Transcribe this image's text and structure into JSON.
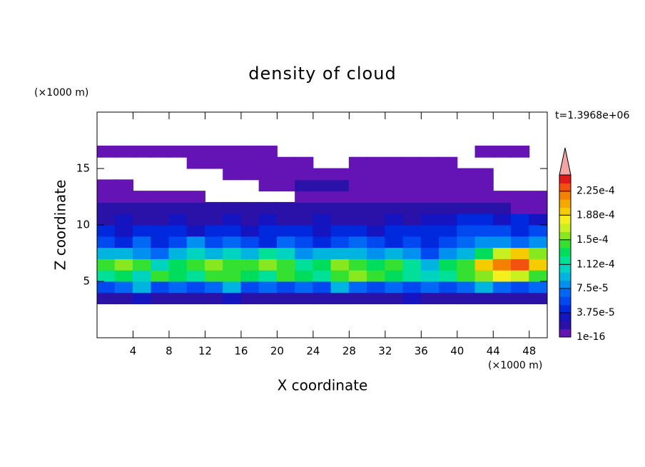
{
  "chart_data": {
    "type": "contour",
    "title": "density of cloud",
    "x_label": "X coordinate",
    "y_label": "Z coordinate",
    "x_unit": "(×1000 m)",
    "y_unit": "(×1000 m)",
    "annotation": "t=1.3968e+06",
    "xlim": [
      0,
      50
    ],
    "ylim": [
      0,
      20
    ],
    "xticks": [
      4,
      8,
      12,
      16,
      20,
      24,
      28,
      32,
      36,
      40,
      44,
      48
    ],
    "yticks": [
      5,
      10,
      15
    ],
    "field": {
      "x": [
        1,
        3,
        5,
        7,
        9,
        11,
        13,
        15,
        17,
        19,
        21,
        23,
        25,
        27,
        29,
        31,
        33,
        35,
        37,
        39,
        41,
        43,
        45,
        47,
        49
      ],
      "z": [
        3.5,
        4.5,
        5.5,
        6.5,
        7.5,
        8.5,
        9.5,
        10.5,
        11.5,
        12.5,
        13.5,
        14.5,
        15.5,
        16.5
      ],
      "values": [
        [
          2e-05,
          2e-05,
          3e-05,
          2e-05,
          2e-05,
          2e-05,
          2e-05,
          3e-05,
          2e-05,
          2e-05,
          2e-05,
          2e-05,
          2e-05,
          2e-05,
          2e-05,
          2e-05,
          2e-05,
          3e-05,
          2e-05,
          2e-05,
          2e-05,
          2e-05,
          2e-05,
          2e-05,
          2e-05
        ],
        [
          6e-05,
          7e-05,
          9e-05,
          6e-05,
          7e-05,
          6e-05,
          7e-05,
          9e-05,
          6e-05,
          7e-05,
          6e-05,
          7e-05,
          6e-05,
          9e-05,
          7e-05,
          6e-05,
          7e-05,
          6e-05,
          7e-05,
          6e-05,
          7e-05,
          9e-05,
          7e-05,
          6e-05,
          7e-05
        ],
        [
          0.00012,
          0.00013,
          0.00011,
          0.00014,
          0.00013,
          0.00012,
          0.00014,
          0.00015,
          0.00013,
          0.00012,
          0.00014,
          0.00013,
          0.00012,
          0.00015,
          0.00016,
          0.00014,
          0.00013,
          0.00012,
          0.00011,
          0.00012,
          0.00014,
          0.00016,
          0.00018,
          0.00017,
          0.00015
        ],
        [
          0.00015,
          0.00016,
          0.00014,
          0.00011,
          0.00013,
          0.00015,
          0.00016,
          0.00015,
          0.00014,
          0.00016,
          0.00015,
          0.00012,
          0.00013,
          0.00016,
          0.00015,
          0.00013,
          0.00014,
          0.00012,
          0.0001,
          0.00013,
          0.00015,
          0.00019,
          0.00022,
          0.00023,
          0.0002
        ],
        [
          9e-05,
          0.0001,
          8e-05,
          7e-05,
          9e-05,
          0.00011,
          0.0001,
          0.00011,
          9e-05,
          0.00012,
          0.00011,
          8e-05,
          9e-05,
          0.0001,
          9e-05,
          8e-05,
          9e-05,
          8e-05,
          6e-05,
          8e-05,
          0.0001,
          0.00013,
          0.00017,
          0.00019,
          0.00016
        ],
        [
          6e-05,
          5e-05,
          7e-05,
          5e-05,
          6e-05,
          8e-05,
          6e-05,
          7e-05,
          6e-05,
          5e-05,
          7e-05,
          6e-05,
          5e-05,
          6e-05,
          7e-05,
          6e-05,
          5e-05,
          6e-05,
          5e-05,
          6e-05,
          7e-05,
          8e-05,
          8e-05,
          7e-05,
          8e-05
        ],
        [
          4e-05,
          3e-05,
          4e-05,
          5e-05,
          4e-05,
          3e-05,
          4e-05,
          4e-05,
          3e-05,
          4e-05,
          5e-05,
          4e-05,
          3e-05,
          4e-05,
          4e-05,
          3e-05,
          4e-05,
          5e-05,
          4e-05,
          5e-05,
          6e-05,
          6e-05,
          6e-05,
          5e-05,
          6e-05
        ],
        [
          2.5e-05,
          3e-05,
          2.5e-05,
          2e-05,
          3e-05,
          2.5e-05,
          2e-05,
          3e-05,
          2.5e-05,
          3e-05,
          2e-05,
          2.5e-05,
          3e-05,
          2.5e-05,
          2e-05,
          2.5e-05,
          3e-05,
          2.5e-05,
          3e-05,
          3.5e-05,
          4e-05,
          4e-05,
          3.5e-05,
          4e-05,
          3.5e-05
        ],
        [
          1.3e-05,
          1.5e-05,
          2e-05,
          1.3e-05,
          1.5e-05,
          1.3e-05,
          2e-05,
          1.5e-05,
          1.3e-05,
          1.5e-05,
          2e-05,
          1.3e-05,
          1.5e-05,
          1.3e-05,
          1.5e-05,
          2e-05,
          1.3e-05,
          1.5e-05,
          1.3e-05,
          1.5e-05,
          1.3e-05,
          1.5e-05,
          1.3e-05,
          5e-06,
          5e-06
        ],
        [
          5e-06,
          8e-06,
          5e-06,
          8e-06,
          5e-06,
          8e-06,
          null,
          null,
          null,
          null,
          null,
          5e-06,
          8e-06,
          5e-06,
          8e-06,
          5e-06,
          8e-06,
          5e-06,
          8e-06,
          5e-06,
          8e-06,
          5e-06,
          5e-06,
          5e-06,
          5e-06
        ],
        [
          5e-06,
          5e-06,
          null,
          null,
          null,
          null,
          null,
          null,
          null,
          5e-06,
          5e-06,
          1.3e-05,
          1.3e-05,
          1.3e-05,
          5e-06,
          5e-06,
          5e-06,
          5e-06,
          5e-06,
          5e-06,
          5e-06,
          5e-06,
          null,
          null,
          null
        ],
        [
          null,
          null,
          null,
          null,
          null,
          null,
          null,
          5e-06,
          5e-06,
          5e-06,
          5e-06,
          5e-06,
          5e-06,
          5e-06,
          5e-06,
          5e-06,
          5e-06,
          5e-06,
          5e-06,
          5e-06,
          5e-06,
          5e-06,
          null,
          null,
          null
        ],
        [
          null,
          null,
          null,
          null,
          null,
          5e-06,
          5e-06,
          5e-06,
          5e-06,
          5e-06,
          5e-06,
          5e-06,
          null,
          null,
          5e-06,
          5e-06,
          5e-06,
          5e-06,
          5e-06,
          5e-06,
          null,
          null,
          null,
          null,
          null
        ],
        [
          5e-06,
          5e-06,
          5e-06,
          5e-06,
          5e-06,
          5e-06,
          5e-06,
          5e-06,
          5e-06,
          5e-06,
          null,
          null,
          null,
          null,
          null,
          null,
          null,
          null,
          null,
          null,
          null,
          5e-06,
          5e-06,
          5e-06,
          null
        ]
      ]
    },
    "colorbar": {
      "range": [
        1e-16,
        0.00025
      ],
      "ticks": [
        {
          "value": 1e-16,
          "label": "1e-16"
        },
        {
          "value": 3.75e-05,
          "label": "3.75e-5"
        },
        {
          "value": 7.5e-05,
          "label": "7.5e-5"
        },
        {
          "value": 0.000112,
          "label": "1.12e-4"
        },
        {
          "value": 0.00015,
          "label": "1.5e-4"
        },
        {
          "value": 0.000188,
          "label": "1.88e-4"
        },
        {
          "value": 0.000225,
          "label": "2.25e-4"
        }
      ],
      "colors": [
        "#6414b4",
        "#2a12a8",
        "#1414c0",
        "#0028dc",
        "#0048f0",
        "#0068f4",
        "#0090f0",
        "#00b4e0",
        "#00d4c0",
        "#00e098",
        "#00dc5c",
        "#34e030",
        "#88e820",
        "#c8f020",
        "#f4f020",
        "#f4cc00",
        "#f4a800",
        "#f48000",
        "#f45010",
        "#e01818"
      ],
      "over_color": "#f4a4a4"
    }
  }
}
